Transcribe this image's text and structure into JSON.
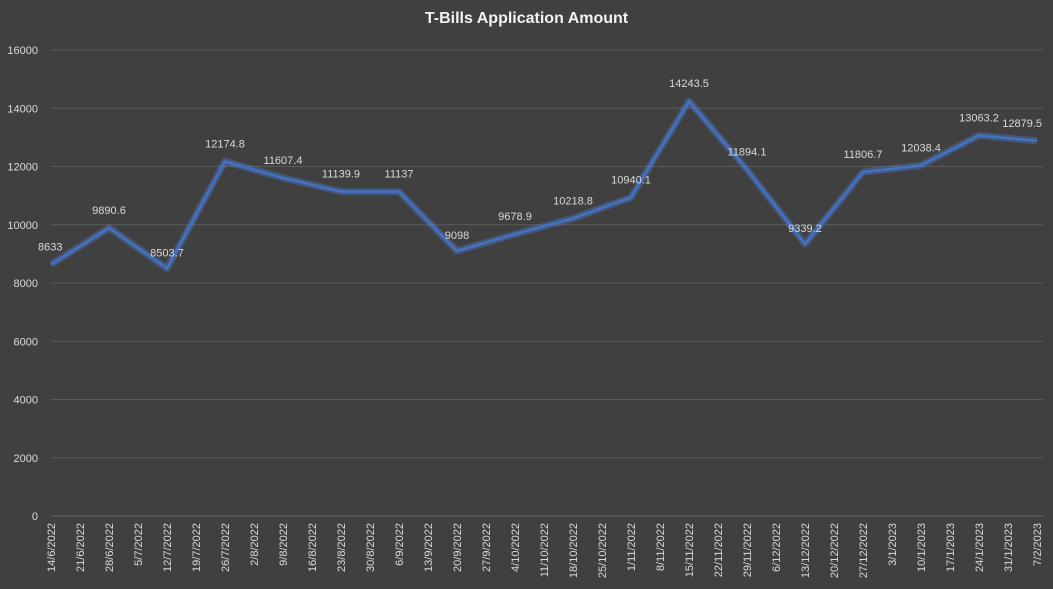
{
  "chart_data": {
    "type": "line",
    "title": "T-Bills Application Amount",
    "xlabel": "",
    "ylabel": "",
    "ylim": [
      0,
      16000
    ],
    "yticks": [
      0,
      2000,
      4000,
      6000,
      8000,
      10000,
      12000,
      14000,
      16000
    ],
    "grid": true,
    "legend": "none",
    "categories": [
      "14/6/2022",
      "21/6/2022",
      "28/6/2022",
      "5/7/2022",
      "12/7/2022",
      "19/7/2022",
      "26/7/2022",
      "2/8/2022",
      "9/8/2022",
      "16/8/2022",
      "23/8/2022",
      "30/8/2022",
      "6/9/2022",
      "13/9/2022",
      "20/9/2022",
      "27/9/2022",
      "4/10/2022",
      "11/10/2022",
      "18/10/2022",
      "25/10/2022",
      "1/11/2022",
      "8/11/2022",
      "15/11/2022",
      "22/11/2022",
      "29/11/2022",
      "6/12/2022",
      "13/12/2022",
      "20/12/2022",
      "27/12/2022",
      "3/1/2023",
      "10/1/2023",
      "17/1/2023",
      "24/1/2023",
      "31/1/2023",
      "7/2/2023"
    ],
    "series": [
      {
        "color": "#4472c4",
        "values": [
          8633,
          null,
          9890.6,
          null,
          8503.7,
          null,
          12174.8,
          null,
          11607.4,
          null,
          11139.9,
          null,
          11137,
          null,
          9098,
          null,
          9678.9,
          null,
          10218.8,
          null,
          10940.1,
          null,
          14243.5,
          null,
          11894.1,
          null,
          9339.2,
          null,
          11806.7,
          null,
          12038.4,
          null,
          13063.2,
          null,
          12879.5
        ]
      }
    ]
  }
}
